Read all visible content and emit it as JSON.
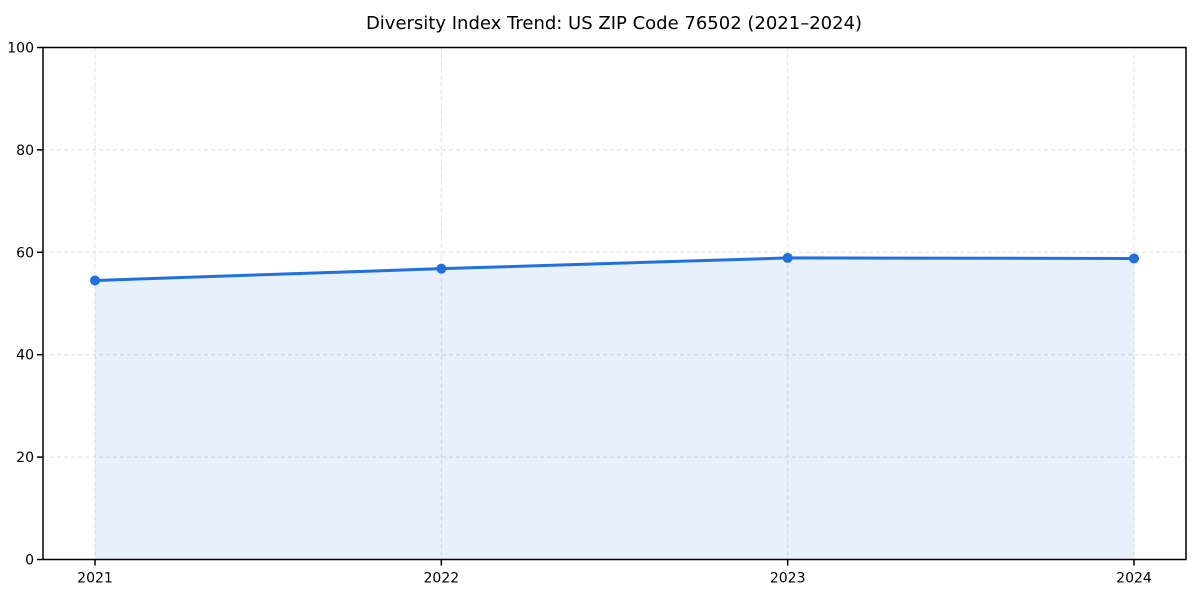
{
  "chart_data": {
    "type": "line",
    "title": "Diversity Index Trend: US ZIP Code 76502 (2021–2024)",
    "x": [
      2021,
      2022,
      2023,
      2024
    ],
    "series": [
      {
        "name": "Diversity Index",
        "values": [
          54.5,
          56.8,
          58.9,
          58.8
        ]
      }
    ],
    "xlabel": "",
    "ylabel": "",
    "ylim": [
      0,
      100
    ],
    "yticks": [
      0,
      20,
      40,
      60,
      80,
      100
    ],
    "grid": true,
    "grid_style": "dashed",
    "legend": false,
    "area_fill": true,
    "markers": true,
    "colors": {
      "line": "#2170e0",
      "marker": "#2170e0",
      "area": "#2170e0",
      "area_opacity": 0.1,
      "grid": "#dedede",
      "axis": "#000000",
      "text": "#000000",
      "background": "#ffffff"
    }
  }
}
